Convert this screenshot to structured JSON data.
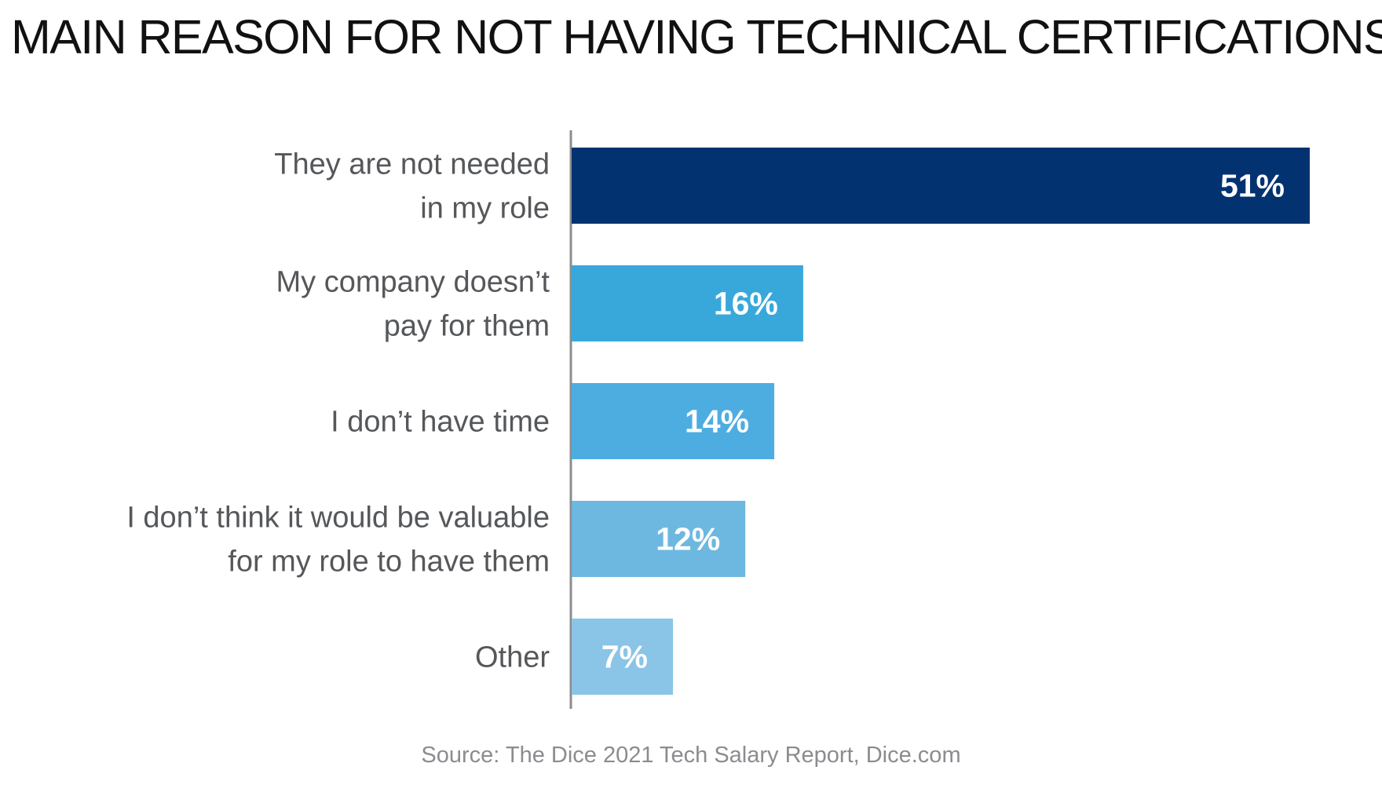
{
  "title": "MAIN REASON FOR NOT HAVING TECHNICAL CERTIFICATIONS",
  "source": "Source: The Dice 2021 Tech Salary Report, Dice.com",
  "chart_data": {
    "type": "bar",
    "orientation": "horizontal",
    "title": "MAIN REASON FOR NOT HAVING TECHNICAL CERTIFICATIONS",
    "xlabel": "",
    "ylabel": "",
    "unit": "%",
    "categories": [
      [
        "They are not needed",
        "in my role"
      ],
      [
        "My company doesn’t",
        "pay for them"
      ],
      [
        "I don’t have time"
      ],
      [
        "I don’t think it would be valuable",
        "for my role to have them"
      ],
      [
        "Other"
      ]
    ],
    "values": [
      51,
      16,
      14,
      12,
      7
    ],
    "value_labels": [
      "51%",
      "16%",
      "14%",
      "12%",
      "7%"
    ],
    "bar_colors": [
      "#033270",
      "#38a8db",
      "#4eade0",
      "#6db8e0",
      "#8ac4e6"
    ],
    "xlim": [
      0,
      55
    ],
    "grid": false,
    "legend": "none"
  }
}
